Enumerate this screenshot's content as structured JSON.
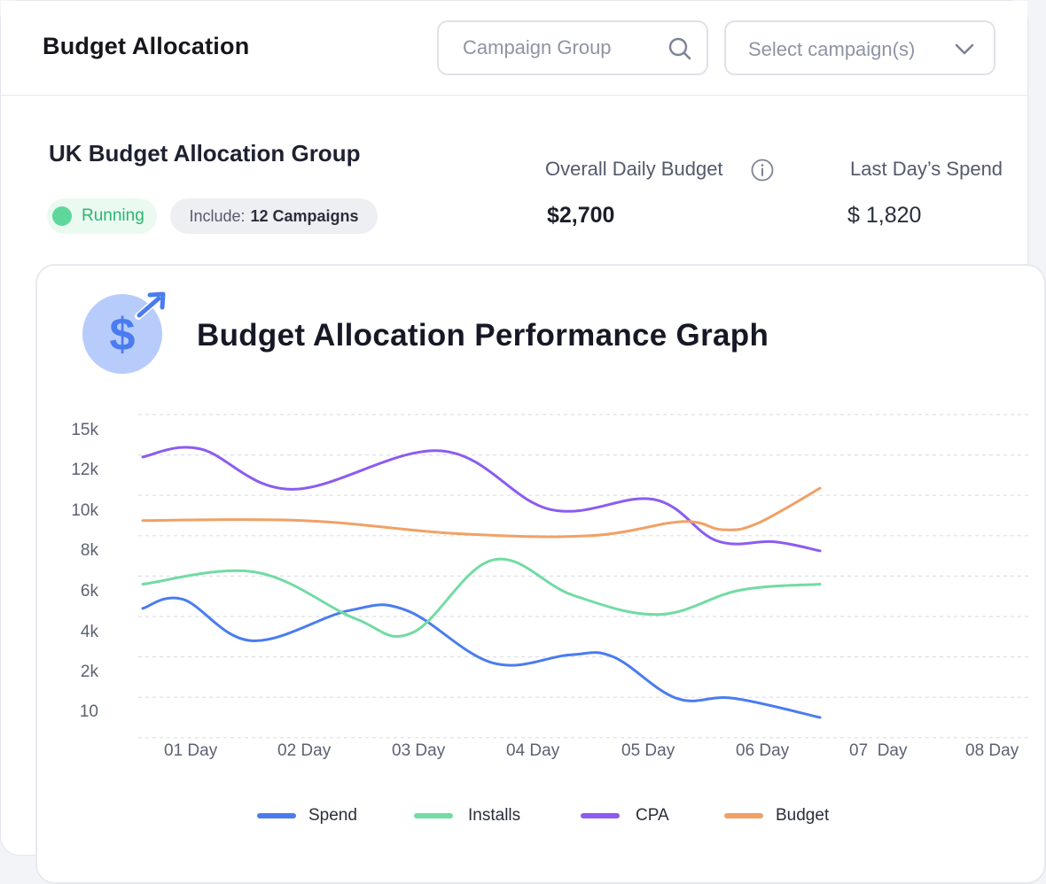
{
  "header": {
    "title": "Budget Allocation",
    "search_placeholder": "Campaign Group",
    "select_label": "Select campaign(s)"
  },
  "group": {
    "name": "UK Budget Allocation Group",
    "status": "Running",
    "include_prefix": "Include:",
    "include_value": "12 Campaigns"
  },
  "stats": {
    "daily_budget_label": "Overall Daily Budget",
    "daily_budget_value": "$2,700",
    "last_spend_label": "Last Day’s Spend",
    "last_spend_value": "$ 1,820"
  },
  "graph": {
    "title": "Budget Allocation Performance Graph",
    "badge_symbol": "$"
  },
  "colors": {
    "spend": "#4a7cf0",
    "installs": "#72dba3",
    "cpa": "#8b5cf1",
    "budget": "#f0a166",
    "status_green": "#2bb56f"
  },
  "chart_data": {
    "type": "line",
    "x": [
      "01 Day",
      "02 Day",
      "03 Day",
      "04 Day",
      "05 Day",
      "06 Day",
      "07  Day",
      "08 Day"
    ],
    "y_tick_labels": [
      "15k",
      "12k",
      "10k",
      "8k",
      "6k",
      "4k",
      "2k",
      "10"
    ],
    "grid": true,
    "legend_position": "bottom",
    "series": [
      {
        "name": "Spend",
        "color": "#4a7cf0",
        "points": [
          [
            0.0,
            6.4
          ],
          [
            0.35,
            6.85
          ],
          [
            0.95,
            4.8
          ],
          [
            1.8,
            6.3
          ],
          [
            2.3,
            6.3
          ],
          [
            3.05,
            3.7
          ],
          [
            3.72,
            4.1
          ],
          [
            4.1,
            4.0
          ],
          [
            4.65,
            1.95
          ],
          [
            5.15,
            1.95
          ],
          [
            5.9,
            1.0
          ]
        ]
      },
      {
        "name": "Installs",
        "color": "#72dba3",
        "points": [
          [
            0.0,
            7.6
          ],
          [
            0.98,
            8.2
          ],
          [
            1.85,
            5.9
          ],
          [
            2.35,
            5.2
          ],
          [
            3.05,
            8.8
          ],
          [
            3.75,
            7.05
          ],
          [
            4.5,
            6.1
          ],
          [
            5.2,
            7.3
          ],
          [
            5.9,
            7.6
          ]
        ]
      },
      {
        "name": "CPA",
        "color": "#8b5cf1",
        "points": [
          [
            0.0,
            13.9
          ],
          [
            0.5,
            14.3
          ],
          [
            1.3,
            12.3
          ],
          [
            2.6,
            14.2
          ],
          [
            3.55,
            11.3
          ],
          [
            4.45,
            11.8
          ],
          [
            5.0,
            9.75
          ],
          [
            5.5,
            9.7
          ],
          [
            5.9,
            9.25
          ]
        ]
      },
      {
        "name": "Budget",
        "color": "#f0a166",
        "points": [
          [
            0.0,
            10.75
          ],
          [
            1.4,
            10.75
          ],
          [
            2.75,
            10.1
          ],
          [
            3.9,
            10.0
          ],
          [
            4.7,
            10.7
          ],
          [
            5.05,
            10.3
          ],
          [
            5.35,
            10.6
          ],
          [
            5.9,
            12.35
          ]
        ]
      }
    ]
  },
  "legend": [
    {
      "label": "Spend"
    },
    {
      "label": "Installs"
    },
    {
      "label": "CPA"
    },
    {
      "label": "Budget"
    }
  ]
}
